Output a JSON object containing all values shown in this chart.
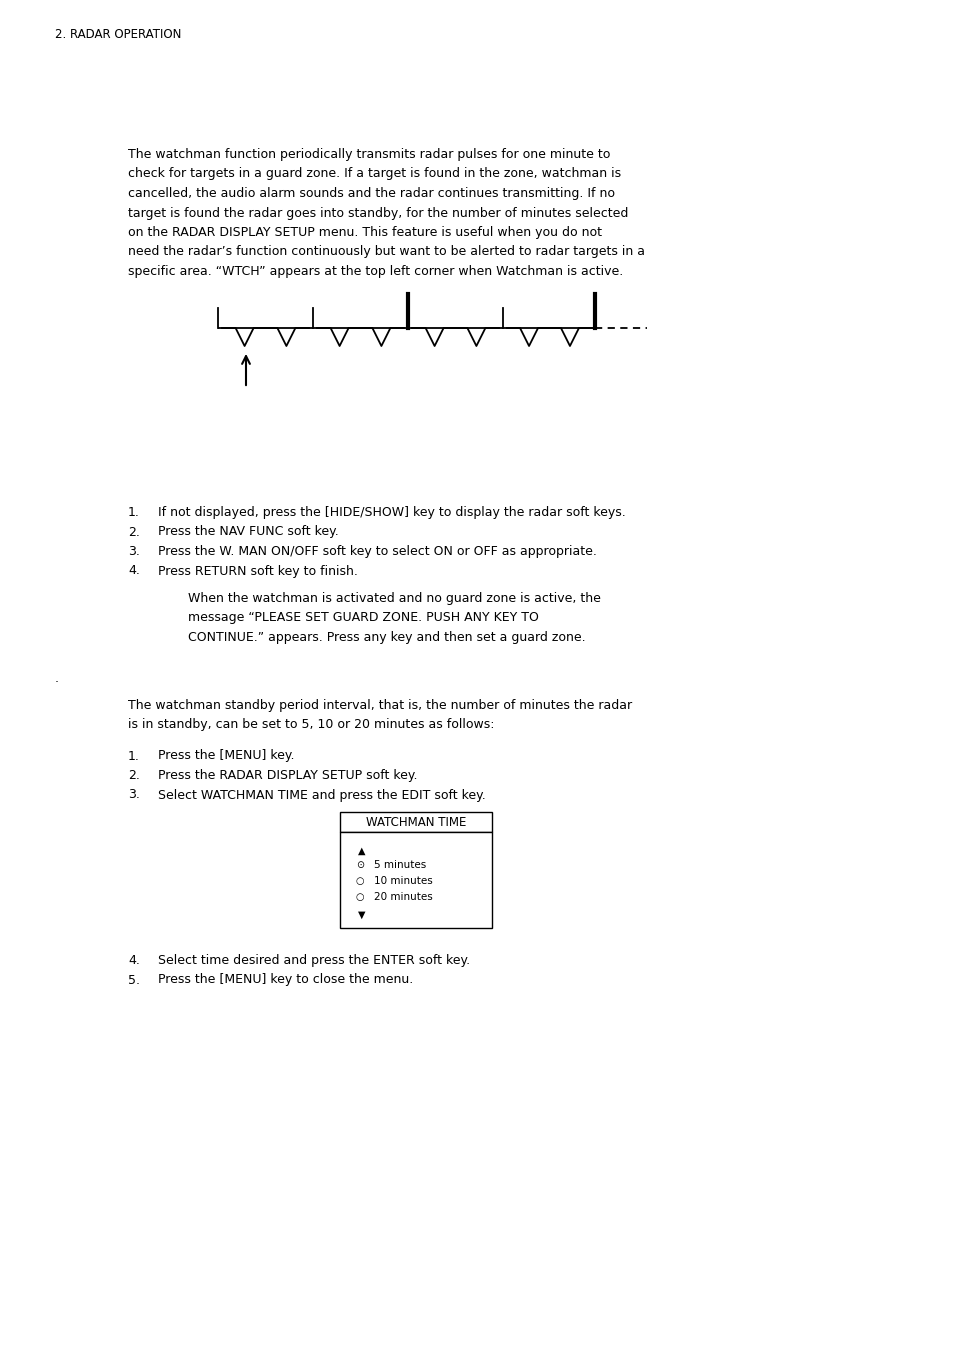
{
  "header": "2. RADAR OPERATION",
  "para1_lines": [
    "The watchman function periodically transmits radar pulses for one minute to",
    "check for targets in a guard zone. If a target is found in the zone, watchman is",
    "cancelled, the audio alarm sounds and the radar continues transmitting. If no",
    "target is found the radar goes into standby, for the number of minutes selected",
    "on the RADAR DISPLAY SETUP menu. This feature is useful when you do not",
    "need the radar’s function continuously but want to be alerted to radar targets in a",
    "specific area. “WTCH” appears at the top left corner when Watchman is active."
  ],
  "list1": [
    "If not displayed, press the [HIDE/SHOW] key to display the radar soft keys.",
    "Press the NAV FUNC soft key.",
    "Press the W. MAN ON/OFF soft key to select ON or OFF as appropriate.",
    "Press RETURN soft key to finish."
  ],
  "note1_lines": [
    "When the watchman is activated and no guard zone is active, the",
    "message “PLEASE SET GUARD ZONE. PUSH ANY KEY TO",
    "CONTINUE.” appears. Press any key and then set a guard zone."
  ],
  "dot": ".",
  "para2_lines": [
    "The watchman standby period interval, that is, the number of minutes the radar",
    "is in standby, can be set to 5, 10 or 20 minutes as follows:"
  ],
  "list2": [
    "Press the [MENU] key.",
    "Press the RADAR DISPLAY SETUP soft key.",
    "Select WATCHMAN TIME and press the EDIT soft key."
  ],
  "menu_title": "WATCHMAN TIME",
  "menu_items": [
    "5 minutes",
    "10 minutes",
    "20 minutes"
  ],
  "list3": [
    "Select time desired and press the ENTER soft key.",
    "Press the [MENU] key to close the menu."
  ],
  "bg_color": "#ffffff",
  "text_color": "#000000"
}
